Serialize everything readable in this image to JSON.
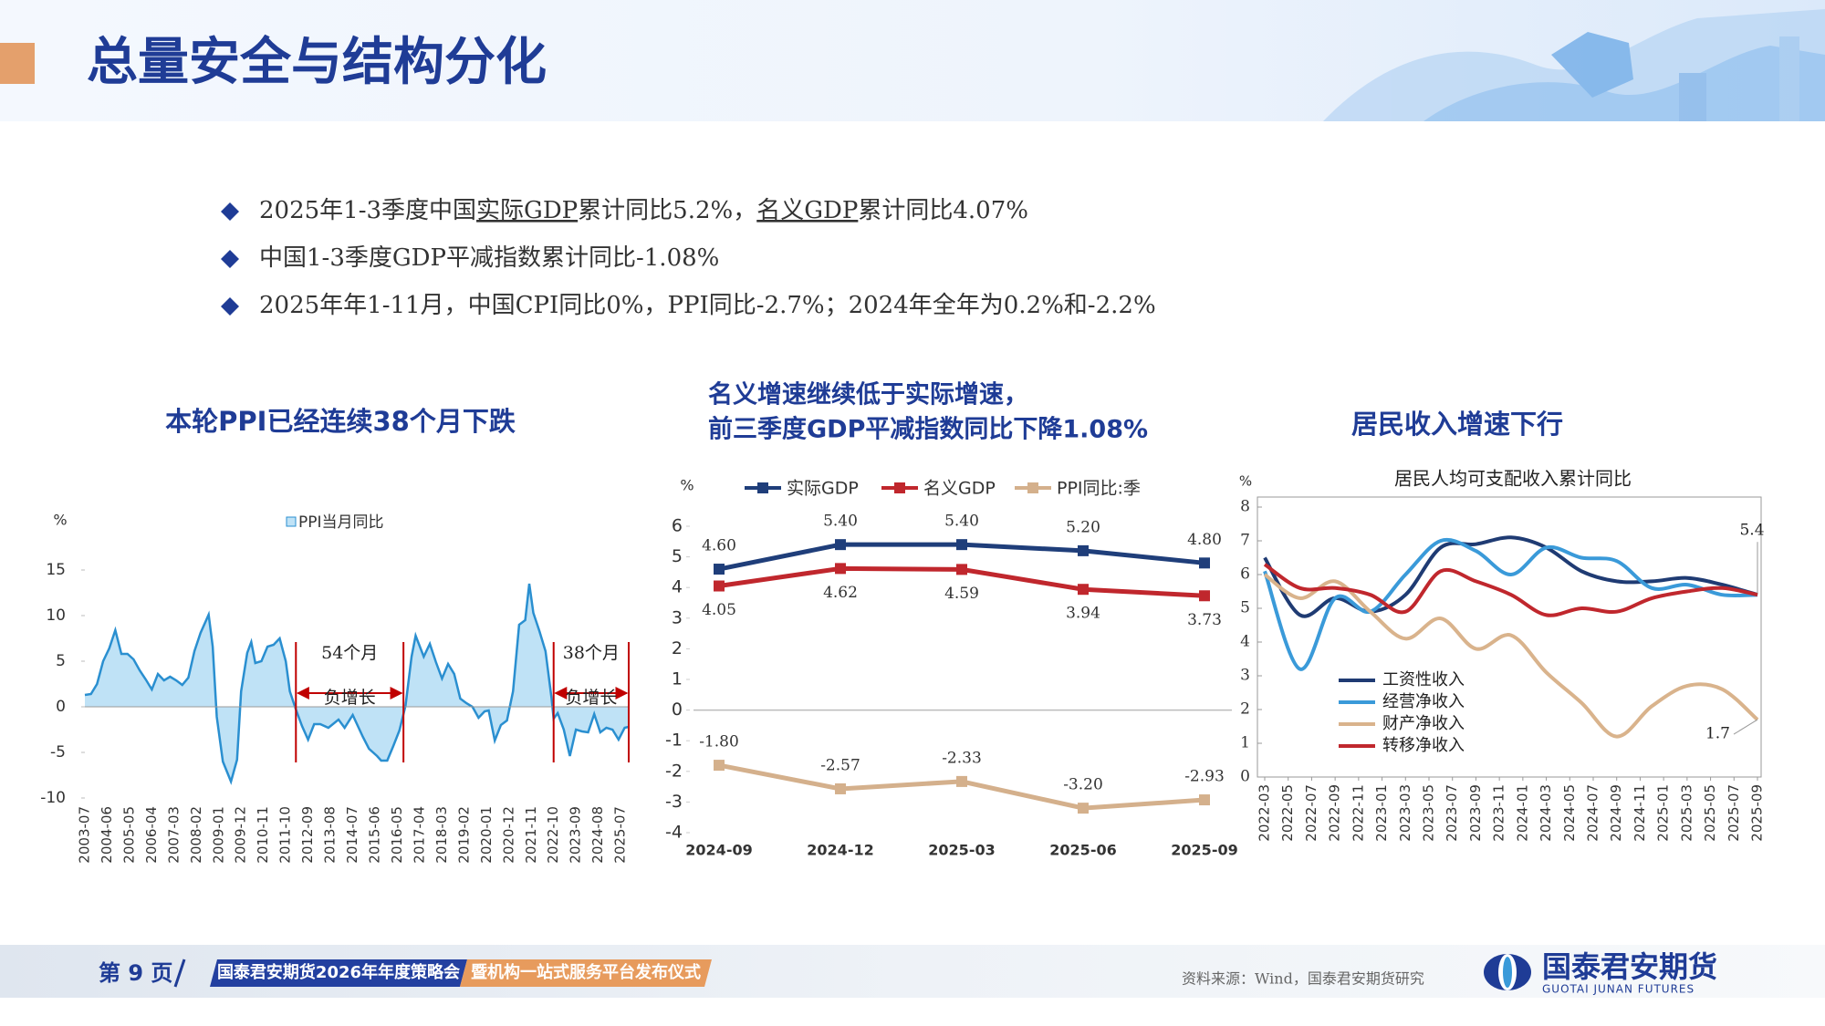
{
  "header": {
    "title": "总量安全与结构分化"
  },
  "bullets": [
    [
      {
        "text": "2025年1-3季度中国"
      },
      {
        "text": "实际GDP",
        "underline": true
      },
      {
        "text": "累计同比5.2%，"
      },
      {
        "text": "名义GDP",
        "underline": true
      },
      {
        "text": "累计同比4.07%"
      }
    ],
    [
      {
        "text": "中国1-3季度GDP平减指数累计同比-1.08%"
      }
    ],
    [
      {
        "text": "2025年年1-11月，中国CPI同比0%，PPI同比-2.7%；2024年全年为0.2%和-2.2%"
      }
    ]
  ],
  "chart_data": [
    {
      "type": "area",
      "title": "本轮PPI已经连续38个月下跌",
      "y_unit": "%",
      "x": [
        "2003-07",
        "2003-10",
        "2004-01",
        "2004-04",
        "2004-07",
        "2004-10",
        "2005-01",
        "2005-04",
        "2005-07",
        "2005-10",
        "2006-01",
        "2006-04",
        "2006-07",
        "2006-10",
        "2007-01",
        "2007-04",
        "2007-07",
        "2007-10",
        "2008-01",
        "2008-04",
        "2008-08",
        "2008-10",
        "2008-12",
        "2009-03",
        "2009-07",
        "2009-10",
        "2009-12",
        "2010-03",
        "2010-05",
        "2010-07",
        "2010-10",
        "2011-01",
        "2011-04",
        "2011-07",
        "2011-10",
        "2011-12",
        "2012-03",
        "2012-06",
        "2012-09",
        "2012-12",
        "2013-03",
        "2013-07",
        "2013-12",
        "2014-03",
        "2014-07",
        "2014-12",
        "2015-03",
        "2015-07",
        "2015-09",
        "2015-12",
        "2016-03",
        "2016-06",
        "2016-09",
        "2016-12",
        "2017-02",
        "2017-06",
        "2017-09",
        "2017-12",
        "2018-03",
        "2018-06",
        "2018-09",
        "2018-12",
        "2019-03",
        "2019-06",
        "2019-09",
        "2019-12",
        "2020-02",
        "2020-05",
        "2020-08",
        "2020-11",
        "2021-02",
        "2021-05",
        "2021-08",
        "2021-10",
        "2021-12",
        "2022-03",
        "2022-06",
        "2022-09",
        "2022-10",
        "2022-12",
        "2023-03",
        "2023-06",
        "2023-09",
        "2023-12",
        "2024-03",
        "2024-06",
        "2024-09",
        "2024-12",
        "2025-03",
        "2025-06",
        "2025-09",
        "2025-11"
      ],
      "series": [
        {
          "name": "PPI当月同比",
          "color": "#2a8fd0",
          "fill": "#bfe2f6",
          "values": [
            1.3,
            1.4,
            2.5,
            5.0,
            6.4,
            8.4,
            5.8,
            5.8,
            5.2,
            4.0,
            3.0,
            1.9,
            3.6,
            2.9,
            3.3,
            2.9,
            2.4,
            3.2,
            6.1,
            8.1,
            10.1,
            6.6,
            -1.1,
            -6.0,
            -8.2,
            -5.8,
            1.7,
            5.9,
            7.1,
            4.8,
            5.0,
            6.6,
            6.8,
            7.5,
            5.0,
            1.7,
            -0.3,
            -2.1,
            -3.6,
            -1.9,
            -1.9,
            -2.3,
            -1.4,
            -2.3,
            -0.9,
            -3.3,
            -4.6,
            -5.4,
            -5.9,
            -5.9,
            -4.3,
            -2.6,
            0.1,
            5.5,
            7.8,
            5.5,
            6.9,
            4.9,
            3.1,
            4.7,
            3.6,
            0.9,
            0.4,
            0.0,
            -1.2,
            -0.5,
            -0.4,
            -3.7,
            -2.0,
            -1.5,
            1.7,
            9.0,
            9.5,
            13.5,
            10.3,
            8.3,
            6.1,
            0.9,
            -1.3,
            -0.7,
            -2.5,
            -5.4,
            -2.5,
            -2.7,
            -2.8,
            -0.8,
            -2.8,
            -2.3,
            -2.5,
            -3.6,
            -2.3,
            -2.2
          ]
        }
      ],
      "xlim": [
        "2003-07",
        "2025-11"
      ],
      "xticks": [
        "2003-07",
        "2004-06",
        "2005-05",
        "2006-04",
        "2007-03",
        "2008-02",
        "2009-01",
        "2009-12",
        "2010-11",
        "2011-10",
        "2012-09",
        "2013-08",
        "2014-07",
        "2015-06",
        "2016-05",
        "2017-04",
        "2018-03",
        "2019-02",
        "2020-01",
        "2020-12",
        "2021-11",
        "2022-10",
        "2023-09",
        "2024-08",
        "2025-07"
      ],
      "ylim": [
        -10,
        15
      ],
      "yticks": [
        -10,
        -5,
        0,
        5,
        10,
        15
      ],
      "annotations": [
        {
          "from": "2012-03",
          "to": "2016-08",
          "lines": [
            "54个月",
            "负增长"
          ],
          "color": "#c00000"
        },
        {
          "from": "2022-10",
          "to": "2025-11",
          "lines": [
            "38个月",
            "负增长"
          ],
          "color": "#c00000"
        }
      ]
    },
    {
      "type": "line",
      "title": [
        "名义增速继续低于实际增速，",
        "前三季度GDP平减指数同比下降1.08%"
      ],
      "y_unit": "%",
      "categories": [
        "2024-09",
        "2024-12",
        "2025-03",
        "2025-06",
        "2025-09"
      ],
      "series": [
        {
          "name": "实际GDP",
          "color": "#1f3e7a",
          "values": [
            4.6,
            5.4,
            5.4,
            5.2,
            4.8
          ],
          "value_labels": [
            "4.60",
            "5.40",
            "5.40",
            "5.20",
            "4.80"
          ],
          "label_pos": "above"
        },
        {
          "name": "名义GDP",
          "color": "#c0272d",
          "values": [
            4.05,
            4.62,
            4.59,
            3.94,
            3.73
          ],
          "value_labels": [
            "4.05",
            "4.62",
            "4.59",
            "3.94",
            "3.73"
          ],
          "label_pos": "below"
        },
        {
          "name": "PPI同比:季",
          "color": "#d4b08c",
          "values": [
            -1.8,
            -2.57,
            -2.33,
            -3.2,
            -2.93
          ],
          "value_labels": [
            "-1.80",
            "-2.57",
            "-2.33",
            "-3.20",
            "-2.93"
          ],
          "label_pos": "above"
        }
      ],
      "ylim": [
        -4,
        6
      ],
      "yticks": [
        -4,
        -3,
        -2,
        -1,
        0,
        1,
        2,
        3,
        4,
        5,
        6
      ],
      "legend": "top"
    },
    {
      "type": "line",
      "title": "居民收入增速下行",
      "subtitle": "居民人均可支配收入累计同比",
      "y_unit": "%",
      "smooth": true,
      "x": [
        "2022-03",
        "2022-06",
        "2022-09",
        "2022-12",
        "2023-03",
        "2023-06",
        "2023-09",
        "2023-12",
        "2024-03",
        "2024-06",
        "2024-09",
        "2024-12",
        "2025-03",
        "2025-06",
        "2025-09"
      ],
      "xlim": [
        "2022-03",
        "2025-09"
      ],
      "xticks": [
        "2022-03",
        "2022-05",
        "2022-07",
        "2022-09",
        "2022-11",
        "2023-01",
        "2023-03",
        "2023-05",
        "2023-07",
        "2023-09",
        "2023-11",
        "2024-01",
        "2024-03",
        "2024-05",
        "2024-07",
        "2024-09",
        "2024-11",
        "2025-01",
        "2025-03",
        "2025-05",
        "2025-07",
        "2025-09"
      ],
      "series": [
        {
          "name": "工资性收入",
          "color": "#1f3b73",
          "values": [
            6.5,
            4.8,
            5.3,
            4.9,
            5.4,
            6.8,
            6.9,
            7.1,
            6.8,
            6.1,
            5.8,
            5.8,
            5.9,
            5.7,
            5.4
          ],
          "label_last": "above"
        },
        {
          "name": "经营净收入",
          "color": "#3a9ad9",
          "values": [
            6.1,
            3.2,
            5.3,
            4.9,
            6.0,
            7.0,
            6.7,
            6.0,
            6.8,
            6.5,
            6.4,
            5.6,
            5.7,
            5.4,
            5.4
          ]
        },
        {
          "name": "财产净收入",
          "color": "#d9b38c",
          "values": [
            6.0,
            5.3,
            5.8,
            4.9,
            4.1,
            4.7,
            3.8,
            4.2,
            3.1,
            2.2,
            1.2,
            2.1,
            2.7,
            2.6,
            1.7
          ],
          "label_last": "left"
        },
        {
          "name": "转移净收入",
          "color": "#c0272d",
          "values": [
            6.3,
            5.6,
            5.6,
            5.4,
            4.9,
            6.1,
            5.8,
            5.4,
            4.8,
            5.0,
            4.9,
            5.3,
            5.5,
            5.6,
            5.4
          ]
        }
      ],
      "ylim": [
        0,
        8
      ],
      "yticks": [
        0,
        1,
        2,
        3,
        4,
        5,
        6,
        7,
        8
      ],
      "legend": "lower-left"
    }
  ],
  "footer": {
    "page": "第 9 页",
    "event": "国泰君安期货2026年年度策略会",
    "event_sub": "暨机构一站式服务平台发布仪式",
    "source": "资料来源：Wind，国泰君安期货研究",
    "logo": "国泰君安期货",
    "logo_en": "GUOTAI JUNAN FUTURES"
  }
}
